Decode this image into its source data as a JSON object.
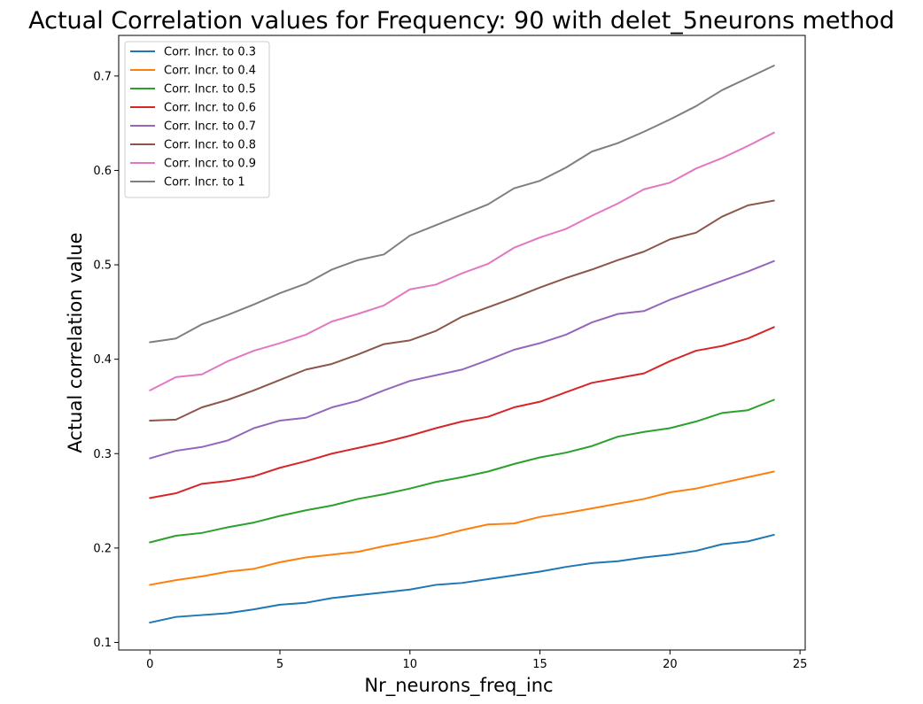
{
  "chart_data": {
    "type": "line",
    "title": "Actual Correlation values for Frequency:  90 with delet_5neurons method",
    "xlabel": "Nr_neurons_freq_inc",
    "ylabel": "Actual correlation value",
    "xlim": [
      -1.2,
      25.2
    ],
    "ylim": [
      0.092,
      0.743
    ],
    "xticks": [
      0,
      5,
      10,
      15,
      20,
      25
    ],
    "yticks": [
      0.1,
      0.2,
      0.3,
      0.4,
      0.5,
      0.6,
      0.7
    ],
    "legend_position": "top-left",
    "grid": false,
    "x": [
      0,
      1,
      2,
      3,
      4,
      5,
      6,
      7,
      8,
      9,
      10,
      11,
      12,
      13,
      14,
      15,
      16,
      17,
      18,
      19,
      20,
      21,
      22,
      23,
      24
    ],
    "series": [
      {
        "name": "Corr. Incr. to 0.3",
        "color": "#1f77b4",
        "values": [
          0.121,
          0.127,
          0.129,
          0.131,
          0.135,
          0.14,
          0.142,
          0.147,
          0.15,
          0.153,
          0.156,
          0.161,
          0.163,
          0.167,
          0.171,
          0.175,
          0.18,
          0.184,
          0.186,
          0.19,
          0.193,
          0.197,
          0.204,
          0.207,
          0.214
        ]
      },
      {
        "name": "Corr. Incr. to 0.4",
        "color": "#ff7f0e",
        "values": [
          0.161,
          0.166,
          0.17,
          0.175,
          0.178,
          0.185,
          0.19,
          0.193,
          0.196,
          0.202,
          0.207,
          0.212,
          0.219,
          0.225,
          0.226,
          0.233,
          0.237,
          0.242,
          0.247,
          0.252,
          0.259,
          0.263,
          0.269,
          0.275,
          0.281
        ]
      },
      {
        "name": "Corr. Incr. to 0.5",
        "color": "#2ca02c",
        "values": [
          0.206,
          0.213,
          0.216,
          0.222,
          0.227,
          0.234,
          0.24,
          0.245,
          0.252,
          0.257,
          0.263,
          0.27,
          0.275,
          0.281,
          0.289,
          0.296,
          0.301,
          0.308,
          0.318,
          0.323,
          0.327,
          0.334,
          0.343,
          0.346,
          0.357
        ]
      },
      {
        "name": "Corr. Incr. to 0.6",
        "color": "#d62728",
        "values": [
          0.253,
          0.258,
          0.268,
          0.271,
          0.276,
          0.285,
          0.292,
          0.3,
          0.306,
          0.312,
          0.319,
          0.327,
          0.334,
          0.339,
          0.349,
          0.355,
          0.365,
          0.375,
          0.38,
          0.385,
          0.398,
          0.409,
          0.414,
          0.422,
          0.434
        ]
      },
      {
        "name": "Corr. Incr. to 0.7",
        "color": "#9467bd",
        "values": [
          0.295,
          0.303,
          0.307,
          0.314,
          0.327,
          0.335,
          0.338,
          0.349,
          0.356,
          0.367,
          0.377,
          0.383,
          0.389,
          0.399,
          0.41,
          0.417,
          0.426,
          0.439,
          0.448,
          0.451,
          0.463,
          0.473,
          0.483,
          0.493,
          0.504
        ]
      },
      {
        "name": "Corr. Incr. to 0.8",
        "color": "#8c564b",
        "values": [
          0.335,
          0.336,
          0.349,
          0.357,
          0.367,
          0.378,
          0.389,
          0.395,
          0.405,
          0.416,
          0.42,
          0.43,
          0.445,
          0.455,
          0.465,
          0.476,
          0.486,
          0.495,
          0.505,
          0.514,
          0.527,
          0.534,
          0.551,
          0.563,
          0.568
        ]
      },
      {
        "name": "Corr. Incr. to 0.9",
        "color": "#e377c2",
        "values": [
          0.367,
          0.381,
          0.384,
          0.398,
          0.409,
          0.417,
          0.426,
          0.44,
          0.448,
          0.457,
          0.474,
          0.479,
          0.491,
          0.501,
          0.518,
          0.529,
          0.538,
          0.552,
          0.565,
          0.58,
          0.587,
          0.602,
          0.613,
          0.626,
          0.64
        ]
      },
      {
        "name": "Corr. Incr. to 1",
        "color": "#7f7f7f",
        "values": [
          0.418,
          0.422,
          0.437,
          0.447,
          0.458,
          0.47,
          0.48,
          0.495,
          0.505,
          0.511,
          0.531,
          0.542,
          0.553,
          0.564,
          0.581,
          0.589,
          0.603,
          0.62,
          0.629,
          0.641,
          0.654,
          0.668,
          0.685,
          0.698,
          0.711
        ]
      }
    ]
  }
}
